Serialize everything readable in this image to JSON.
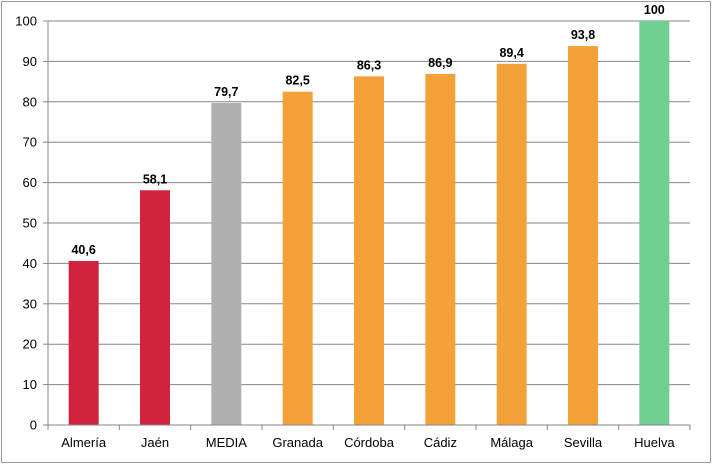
{
  "chart_data": {
    "type": "bar",
    "categories": [
      "Almería",
      "Jaén",
      "MEDIA",
      "Granada",
      "Córdoba",
      "Cádiz",
      "Málaga",
      "Sevilla",
      "Huelva"
    ],
    "values": [
      40.6,
      58.1,
      79.7,
      82.5,
      86.3,
      86.9,
      89.4,
      93.8,
      100
    ],
    "data_labels": [
      "40,6",
      "58,1",
      "79,7",
      "82,5",
      "86,3",
      "86,9",
      "89,4",
      "93,8",
      "100"
    ],
    "colors": [
      "#d2233c",
      "#d2233c",
      "#b1b0b0",
      "#f4a139",
      "#f4a139",
      "#f4a139",
      "#f4a139",
      "#f4a139",
      "#6fcf90"
    ],
    "ylim": [
      0,
      100
    ],
    "yticks": [
      0,
      10,
      20,
      30,
      40,
      50,
      60,
      70,
      80,
      90,
      100
    ],
    "grid": true,
    "legend": "none",
    "title": "",
    "xlabel": "",
    "ylabel": ""
  },
  "colors": {
    "grid": "#868686",
    "axis": "#868686"
  }
}
